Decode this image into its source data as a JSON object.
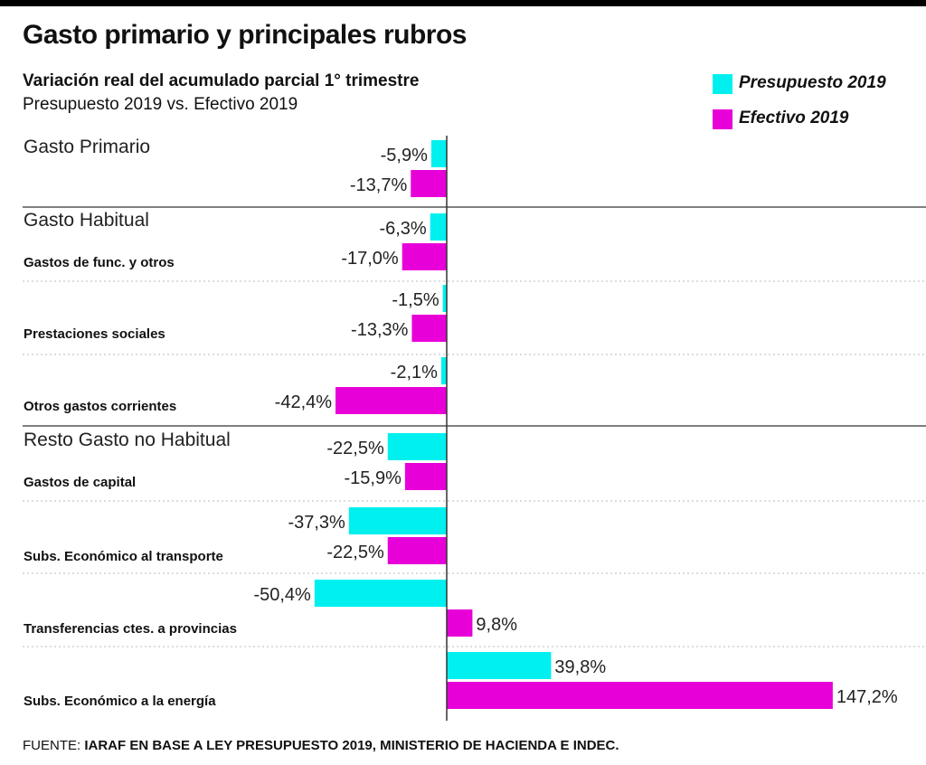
{
  "title": "Gasto primario y principales rubros",
  "subtitle": "Variación real del acumulado parcial 1° trimestre",
  "subtitle2": "Presupuesto 2019 vs. Efectivo 2019",
  "source_prefix": "FUENTE: ",
  "source_text": "IARAF EN BASE A LEY PRESUPUESTO 2019, MINISTERIO DE HACIENDA E INDEC.",
  "colors": {
    "presupuesto": "#00f0f0",
    "efectivo": "#e800d8",
    "axis": "#333333",
    "rule": "#555555",
    "dotted": "#bbbbbb"
  },
  "chart_data": {
    "type": "bar",
    "orientation": "horizontal",
    "unit": "%",
    "legend_position": "top-right",
    "series": [
      {
        "name": "Presupuesto 2019",
        "color": "#00f0f0"
      },
      {
        "name": "Efectivo 2019",
        "color": "#e800d8"
      }
    ],
    "groups": [
      {
        "main_label": "Gasto Primario",
        "sub_label": "",
        "values": [
          -5.9,
          -13.7
        ],
        "labels": [
          "-5,9%",
          "-13,7%"
        ]
      },
      {
        "main_label": "Gasto Habitual",
        "sub_label": "Gastos de func. y otros",
        "values": [
          -6.3,
          -17.0
        ],
        "labels": [
          "-6,3%",
          "-17,0%"
        ]
      },
      {
        "main_label": "",
        "sub_label": "Prestaciones sociales",
        "values": [
          -1.5,
          -13.3
        ],
        "labels": [
          "-1,5%",
          "-13,3%"
        ]
      },
      {
        "main_label": "",
        "sub_label": "Otros gastos corrientes",
        "values": [
          -2.1,
          -42.4
        ],
        "labels": [
          "-2,1%",
          "-42,4%"
        ]
      },
      {
        "main_label": "Resto Gasto no Habitual",
        "sub_label": "Gastos de capital",
        "values": [
          -22.5,
          -15.9
        ],
        "labels": [
          "-22,5%",
          "-15,9%"
        ]
      },
      {
        "main_label": "",
        "sub_label": "Subs. Económico al transporte",
        "values": [
          -37.3,
          -22.5
        ],
        "labels": [
          "-37,3%",
          "-22,5%"
        ]
      },
      {
        "main_label": "",
        "sub_label": "Transferencias ctes. a provincias",
        "values": [
          -50.4,
          9.8
        ],
        "labels": [
          "-50,4%",
          "9,8%"
        ]
      },
      {
        "main_label": "",
        "sub_label": "Subs. Económico a la energía",
        "values": [
          39.8,
          147.2
        ],
        "labels": [
          "39,8%",
          "147,2%"
        ]
      }
    ]
  }
}
